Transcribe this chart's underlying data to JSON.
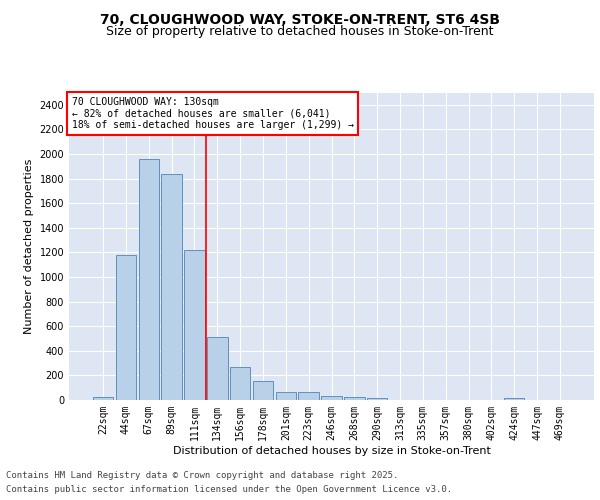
{
  "title_line1": "70, CLOUGHWOOD WAY, STOKE-ON-TRENT, ST6 4SB",
  "title_line2": "Size of property relative to detached houses in Stoke-on-Trent",
  "xlabel": "Distribution of detached houses by size in Stoke-on-Trent",
  "ylabel": "Number of detached properties",
  "categories": [
    "22sqm",
    "44sqm",
    "67sqm",
    "89sqm",
    "111sqm",
    "134sqm",
    "156sqm",
    "178sqm",
    "201sqm",
    "223sqm",
    "246sqm",
    "268sqm",
    "290sqm",
    "313sqm",
    "335sqm",
    "357sqm",
    "380sqm",
    "402sqm",
    "424sqm",
    "447sqm",
    "469sqm"
  ],
  "values": [
    25,
    1175,
    1960,
    1840,
    1220,
    515,
    270,
    155,
    65,
    65,
    30,
    25,
    15,
    0,
    0,
    0,
    0,
    0,
    15,
    0,
    0
  ],
  "bar_color": "#b8d0e8",
  "bar_edge_color": "#6090c0",
  "vline_color": "red",
  "annotation_text": "70 CLOUGHWOOD WAY: 130sqm\n← 82% of detached houses are smaller (6,041)\n18% of semi-detached houses are larger (1,299) →",
  "annotation_box_color": "white",
  "annotation_box_edge": "red",
  "ylim": [
    0,
    2500
  ],
  "yticks": [
    0,
    200,
    400,
    600,
    800,
    1000,
    1200,
    1400,
    1600,
    1800,
    2000,
    2200,
    2400
  ],
  "bg_color": "#dde6f2",
  "grid_color": "white",
  "footer_line1": "Contains HM Land Registry data © Crown copyright and database right 2025.",
  "footer_line2": "Contains public sector information licensed under the Open Government Licence v3.0.",
  "title_fontsize": 10,
  "subtitle_fontsize": 9,
  "label_fontsize": 8,
  "tick_fontsize": 7,
  "annot_fontsize": 7,
  "footer_fontsize": 6.5
}
